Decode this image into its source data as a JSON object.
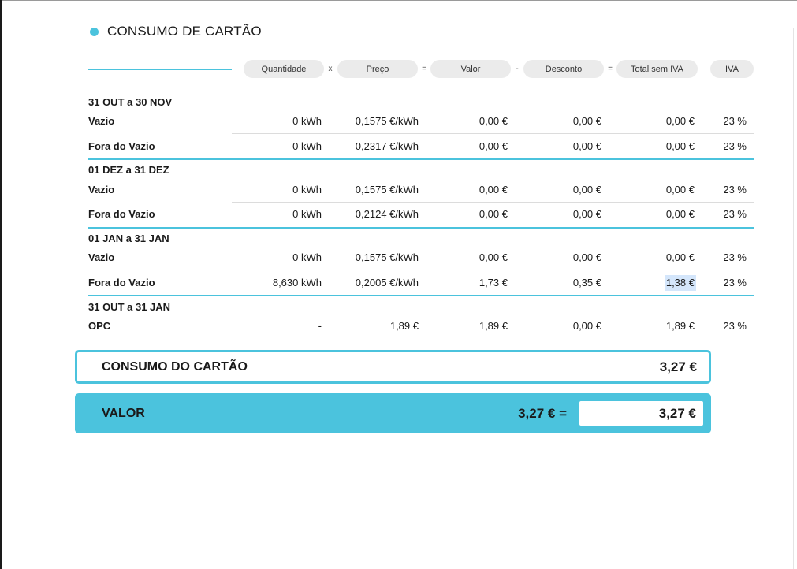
{
  "section": {
    "title": "CONSUMO DE CARTÃO"
  },
  "header": {
    "quantidade": "Quantidade",
    "op1": "x",
    "preco": "Preço",
    "op2": "=",
    "valor": "Valor",
    "op3": "-",
    "desconto": "Desconto",
    "op4": "=",
    "total_sem_iva": "Total sem IVA",
    "iva": "IVA"
  },
  "periods": [
    {
      "label": "31 OUT a 30 NOV",
      "rows": [
        {
          "label": "Vazio",
          "quantidade": "0 kWh",
          "preco": "0,1575 €/kWh",
          "valor": "0,00 €",
          "desconto": "0,00 €",
          "total": "0,00 €",
          "iva": "23 %"
        },
        {
          "label": "Fora do Vazio",
          "quantidade": "0 kWh",
          "preco": "0,2317 €/kWh",
          "valor": "0,00 €",
          "desconto": "0,00 €",
          "total": "0,00 €",
          "iva": "23 %"
        }
      ]
    },
    {
      "label": "01 DEZ a 31 DEZ",
      "rows": [
        {
          "label": "Vazio",
          "quantidade": "0 kWh",
          "preco": "0,1575 €/kWh",
          "valor": "0,00 €",
          "desconto": "0,00 €",
          "total": "0,00 €",
          "iva": "23 %"
        },
        {
          "label": "Fora do Vazio",
          "quantidade": "0 kWh",
          "preco": "0,2124 €/kWh",
          "valor": "0,00 €",
          "desconto": "0,00 €",
          "total": "0,00 €",
          "iva": "23 %"
        }
      ]
    },
    {
      "label": "01 JAN a 31 JAN",
      "rows": [
        {
          "label": "Vazio",
          "quantidade": "0 kWh",
          "preco": "0,1575 €/kWh",
          "valor": "0,00 €",
          "desconto": "0,00 €",
          "total": "0,00 €",
          "iva": "23 %"
        },
        {
          "label": "Fora do Vazio",
          "quantidade": "8,630 kWh",
          "preco": "0,2005 €/kWh",
          "valor": "1,73 €",
          "desconto": "0,35 €",
          "total": "1,38 €",
          "iva": "23 %"
        }
      ]
    },
    {
      "label": "31 OUT a 31 JAN",
      "rows": [
        {
          "label": "OPC",
          "quantidade": "-",
          "preco": "1,89 €",
          "valor": "1,89 €",
          "desconto": "0,00 €",
          "total": "1,89 €",
          "iva": "23 %"
        }
      ]
    }
  ],
  "consumo": {
    "label": "CONSUMO DO CARTÃO",
    "value": "3,27 €"
  },
  "valor": {
    "label": "VALOR",
    "equation": "3,27 € =",
    "value": "3,27 €"
  },
  "colors": {
    "accent": "#4bc3dd",
    "pill": "#ebebeb",
    "highlight": "#d4e6fb"
  }
}
